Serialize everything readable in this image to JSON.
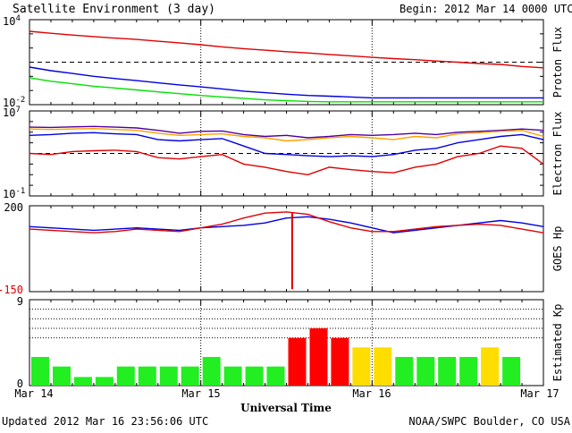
{
  "header": {
    "title": "Satellite Environment (3 day)",
    "begin_label": "Begin:",
    "begin_value": "2012 Mar 14 0000 UTC"
  },
  "footer": {
    "updated": "Updated 2012 Mar 16 23:56:06 UTC",
    "credit": "NOAA/SWPC Boulder, CO USA",
    "xaxis_title": "Universal Time"
  },
  "x_ticks": [
    "Mar 14",
    "Mar 15",
    "Mar 16",
    "Mar 17"
  ],
  "colors": {
    "red": "#e00000",
    "blue": "#0000e0",
    "green": "#00e000",
    "orange": "#ffa000",
    "purple": "#5000a0",
    "kp_green": "#22ee22",
    "kp_yellow": "#ffdd00",
    "kp_red": "#ff0000"
  },
  "chart_data": [
    {
      "type": "line",
      "ylabel": "Proton Flux",
      "scale": "log",
      "ylim": [
        0.01,
        10000
      ],
      "ytick_labels": [
        {
          "base": "10",
          "exp": "4"
        },
        {
          "base": "10",
          "exp": "-2"
        }
      ],
      "threshold": 10,
      "x": [
        0,
        3,
        6,
        9,
        12,
        15,
        18,
        21,
        24,
        27,
        30,
        33,
        36,
        39,
        42,
        45,
        48,
        51,
        54,
        57,
        60,
        63,
        66,
        69,
        72
      ],
      "series": [
        {
          "color": "red",
          "values": [
            1500,
            1100,
            820,
            640,
            500,
            400,
            300,
            230,
            170,
            120,
            90,
            70,
            55,
            45,
            35,
            28,
            22,
            18,
            15,
            12,
            10,
            8,
            7,
            5,
            4
          ]
        },
        {
          "color": "blue",
          "values": [
            4.5,
            2.5,
            1.6,
            1.0,
            0.7,
            0.5,
            0.35,
            0.25,
            0.18,
            0.13,
            0.09,
            0.07,
            0.055,
            0.045,
            0.04,
            0.035,
            0.03,
            0.03,
            0.03,
            0.03,
            0.03,
            0.03,
            0.03,
            0.03,
            0.03
          ]
        },
        {
          "color": "green",
          "values": [
            0.8,
            0.45,
            0.3,
            0.2,
            0.15,
            0.11,
            0.08,
            0.06,
            0.045,
            0.035,
            0.028,
            0.022,
            0.019,
            0.017,
            0.016,
            0.016,
            0.016,
            0.016,
            0.016,
            0.016,
            0.016,
            0.016,
            0.016,
            0.016,
            0.016
          ]
        }
      ]
    },
    {
      "type": "line",
      "ylabel": "Electron Flux",
      "scale": "log",
      "ylim": [
        0.1,
        10000000
      ],
      "ytick_labels": [
        {
          "base": "10",
          "exp": "7"
        },
        {
          "base": "10",
          "exp": "-1"
        }
      ],
      "threshold": 1000,
      "x": [
        0,
        3,
        6,
        9,
        12,
        15,
        18,
        21,
        24,
        27,
        30,
        33,
        36,
        39,
        42,
        45,
        48,
        51,
        54,
        57,
        60,
        63,
        66,
        69,
        72
      ],
      "series": [
        {
          "color": "purple",
          "values": [
            300000,
            280000,
            320000,
            350000,
            300000,
            250000,
            150000,
            80000,
            120000,
            130000,
            60000,
            40000,
            50000,
            30000,
            40000,
            60000,
            50000,
            60000,
            80000,
            60000,
            100000,
            120000,
            150000,
            200000,
            150000
          ]
        },
        {
          "color": "orange",
          "values": [
            200000,
            180000,
            200000,
            220000,
            180000,
            150000,
            80000,
            50000,
            60000,
            70000,
            40000,
            30000,
            15000,
            20000,
            30000,
            40000,
            30000,
            20000,
            40000,
            30000,
            70000,
            90000,
            120000,
            150000,
            40000
          ]
        },
        {
          "color": "blue",
          "values": [
            50000,
            60000,
            80000,
            90000,
            70000,
            60000,
            20000,
            15000,
            20000,
            25000,
            5000,
            1000,
            800,
            600,
            500,
            600,
            500,
            800,
            2000,
            3000,
            10000,
            20000,
            40000,
            60000,
            20000
          ]
        },
        {
          "color": "red",
          "values": [
            1000,
            800,
            1500,
            1800,
            2000,
            1500,
            400,
            300,
            500,
            800,
            100,
            50,
            20,
            10,
            50,
            30,
            20,
            15,
            50,
            100,
            500,
            1000,
            5000,
            3000,
            100
          ]
        }
      ]
    },
    {
      "type": "line",
      "ylabel": "GOES Hp",
      "scale": "linear",
      "ylim": [
        -150,
        200
      ],
      "ytick_labels": [
        "200",
        "-150"
      ],
      "x": [
        0,
        3,
        6,
        9,
        12,
        15,
        18,
        21,
        24,
        27,
        30,
        33,
        36,
        39,
        42,
        45,
        48,
        51,
        54,
        57,
        60,
        63,
        66,
        69,
        72
      ],
      "series": [
        {
          "color": "blue",
          "values": [
            115,
            110,
            105,
            100,
            105,
            110,
            105,
            100,
            110,
            115,
            120,
            130,
            150,
            155,
            145,
            130,
            110,
            90,
            100,
            110,
            120,
            130,
            140,
            130,
            115
          ]
        },
        {
          "color": "red",
          "values": [
            105,
            100,
            95,
            90,
            95,
            105,
            100,
            95,
            110,
            125,
            150,
            170,
            175,
            165,
            135,
            110,
            95,
            95,
            105,
            115,
            120,
            125,
            120,
            105,
            90
          ]
        }
      ],
      "spike": {
        "color": "red",
        "x": 36.8,
        "from": 170,
        "to": -140
      }
    },
    {
      "type": "bar",
      "ylabel": "Estimated Kp",
      "ylim": [
        0,
        9
      ],
      "ytick_labels": [
        "9",
        "0"
      ],
      "gridlines": [
        5,
        6,
        7,
        8
      ],
      "values": [
        3,
        2,
        0.9,
        0.9,
        2,
        2,
        2,
        2,
        3,
        2,
        2,
        2,
        5,
        6,
        5,
        4,
        4,
        3,
        3,
        3,
        3,
        4,
        3,
        0
      ]
    }
  ]
}
